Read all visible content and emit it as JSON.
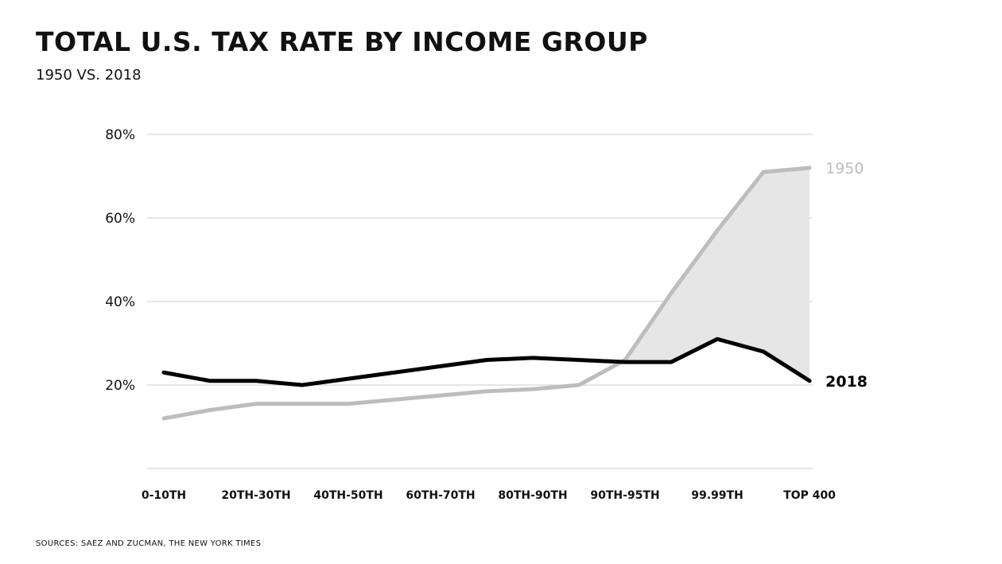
{
  "chart_data": {
    "type": "line",
    "title": "TOTAL U.S. TAX RATE BY INCOME GROUP",
    "subtitle": "1950 VS. 2018",
    "ylim": [
      0,
      80
    ],
    "y_ticks": [
      20,
      40,
      60,
      80
    ],
    "y_tick_labels": [
      "20%",
      "40%",
      "60%",
      "80%"
    ],
    "x_count": 15,
    "x_tick_labels": [
      {
        "index": 0,
        "label": "0-10TH"
      },
      {
        "index": 2,
        "label": "20TH-30TH"
      },
      {
        "index": 4,
        "label": "40TH-50TH"
      },
      {
        "index": 6,
        "label": "60TH-70TH"
      },
      {
        "index": 8,
        "label": "80TH-90TH"
      },
      {
        "index": 10,
        "label": "90TH-95TH"
      },
      {
        "index": 12,
        "label": "99.99TH"
      },
      {
        "index": 14,
        "label": "TOP 400"
      }
    ],
    "grid": true,
    "series": [
      {
        "name": "1950",
        "color": "#bdbdbd",
        "values": [
          12,
          14,
          15.5,
          15.5,
          15.5,
          16.5,
          17.5,
          18.5,
          19,
          20,
          26,
          42,
          57,
          71,
          72
        ]
      },
      {
        "name": "2018",
        "color": "#000000",
        "values": [
          23,
          21,
          21,
          20,
          21.5,
          23,
          24.5,
          26,
          26.5,
          26,
          25.5,
          25.5,
          31,
          28,
          21
        ]
      }
    ],
    "fill_between": {
      "color": "#e6e6e6",
      "from_index": 10,
      "to_index": 14
    }
  },
  "source_note": "SOURCES: SAEZ AND ZUCMAN, THE NEW YORK TIMES"
}
